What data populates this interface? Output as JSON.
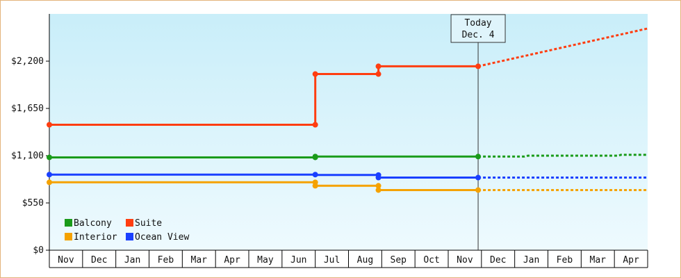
{
  "chart_data": {
    "type": "line",
    "title": "",
    "xlabel": "",
    "ylabel": "",
    "ylim": [
      0,
      2750
    ],
    "y_ticks": [
      0,
      550,
      1100,
      1650,
      2200
    ],
    "y_tick_labels": [
      "$0",
      "$550",
      "$1,100",
      "$1,650",
      "$2,200"
    ],
    "months": [
      "Nov",
      "Dec",
      "Jan",
      "Feb",
      "Mar",
      "Apr",
      "May",
      "Jun",
      "Jul",
      "Aug",
      "Sep",
      "Oct",
      "Nov",
      "Dec",
      "Jan",
      "Feb",
      "Mar",
      "Apr"
    ],
    "today": {
      "line1": "Today",
      "line2": "Dec. 4",
      "x": 12.9
    },
    "legend_placement": "bottom-left",
    "series": [
      {
        "name": "Balcony",
        "color": "#1a9b1a",
        "x": [
          0,
          8.0,
          8.0,
          12.9
        ],
        "y": [
          1080,
          1080,
          1090,
          1090
        ],
        "forecast_x": [
          12.9,
          14.3,
          14.4,
          17.1,
          17.2,
          18.0
        ],
        "forecast_y": [
          1090,
          1090,
          1100,
          1100,
          1110,
          1110
        ]
      },
      {
        "name": "Suite",
        "color": "#ff3d10",
        "x": [
          0,
          8.0,
          8.0,
          8.0,
          9.9,
          9.9,
          12.9
        ],
        "y": [
          1460,
          1460,
          1760,
          2050,
          2050,
          2140,
          2140
        ],
        "forecast_x": [
          12.9,
          18.0
        ],
        "forecast_y": [
          2140,
          2580
        ]
      },
      {
        "name": "Interior",
        "color": "#f5a200",
        "x": [
          0,
          8.0,
          8.0,
          9.9,
          9.9,
          12.9
        ],
        "y": [
          790,
          790,
          750,
          750,
          700,
          700
        ],
        "forecast_x": [
          12.9,
          18.0
        ],
        "forecast_y": [
          700,
          700
        ]
      },
      {
        "name": "Ocean View",
        "color": "#1a40ff",
        "x": [
          0,
          8.0,
          8.0,
          9.9,
          9.9,
          12.9
        ],
        "y": [
          880,
          880,
          875,
          875,
          845,
          845
        ],
        "forecast_x": [
          12.9,
          18.0
        ],
        "forecast_y": [
          845,
          845
        ]
      }
    ],
    "points": [
      {
        "series": 0,
        "x": 0,
        "y": 1080
      },
      {
        "series": 0,
        "x": 8.0,
        "y": 1080
      },
      {
        "series": 0,
        "x": 8.0,
        "y": 1090
      },
      {
        "series": 0,
        "x": 12.9,
        "y": 1090
      },
      {
        "series": 1,
        "x": 0,
        "y": 1460
      },
      {
        "series": 1,
        "x": 8.0,
        "y": 1460
      },
      {
        "series": 1,
        "x": 8.0,
        "y": 2050
      },
      {
        "series": 1,
        "x": 9.9,
        "y": 2050
      },
      {
        "series": 1,
        "x": 9.9,
        "y": 2140
      },
      {
        "series": 1,
        "x": 12.9,
        "y": 2140
      },
      {
        "series": 2,
        "x": 0,
        "y": 790
      },
      {
        "series": 2,
        "x": 8.0,
        "y": 790
      },
      {
        "series": 2,
        "x": 8.0,
        "y": 750
      },
      {
        "series": 2,
        "x": 9.9,
        "y": 750
      },
      {
        "series": 2,
        "x": 9.9,
        "y": 700
      },
      {
        "series": 2,
        "x": 12.9,
        "y": 700
      },
      {
        "series": 3,
        "x": 0,
        "y": 880
      },
      {
        "series": 3,
        "x": 8.0,
        "y": 880
      },
      {
        "series": 3,
        "x": 9.9,
        "y": 875
      },
      {
        "series": 3,
        "x": 9.9,
        "y": 845
      },
      {
        "series": 3,
        "x": 12.9,
        "y": 845
      }
    ]
  }
}
